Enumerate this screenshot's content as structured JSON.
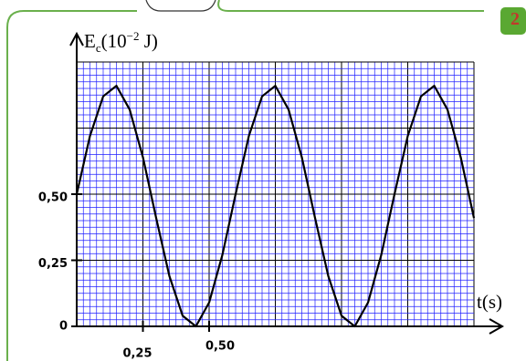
{
  "chart_data": {
    "type": "line",
    "badge": "2",
    "y_label": [
      "E",
      "c",
      "(10",
      "−2",
      " J)"
    ],
    "x_label": "t(s)",
    "x": [
      0,
      0.05,
      0.1,
      0.15,
      0.2,
      0.25,
      0.3,
      0.35,
      0.4,
      0.45,
      0.5,
      0.55,
      0.6,
      0.65,
      0.7,
      0.75,
      0.8,
      0.85,
      0.9,
      0.95,
      1.0,
      1.05,
      1.1,
      1.15,
      1.2,
      1.25,
      1.3,
      1.35,
      1.4,
      1.45,
      1.5
    ],
    "series": [
      {
        "color": "#000000",
        "values": [
          0.5,
          0.72,
          0.87,
          0.91,
          0.82,
          0.64,
          0.41,
          0.19,
          0.04,
          0.0,
          0.09,
          0.27,
          0.5,
          0.72,
          0.87,
          0.91,
          0.82,
          0.64,
          0.41,
          0.19,
          0.04,
          0.0,
          0.09,
          0.27,
          0.5,
          0.72,
          0.87,
          0.91,
          0.82,
          0.64,
          0.41
        ]
      }
    ],
    "xlim": [
      0,
      1.5
    ],
    "ylim": [
      0,
      1
    ],
    "xticks": [
      {
        "value": 0.25,
        "label": "0,25"
      },
      {
        "value": 0.5,
        "label": "0,50"
      }
    ],
    "yticks": [
      {
        "value": 0,
        "label": "0"
      },
      {
        "value": 0.25,
        "label": "0,25"
      },
      {
        "value": 0.5,
        "label": "0,50"
      }
    ],
    "grid": true,
    "grid_color": "#2020ff"
  }
}
